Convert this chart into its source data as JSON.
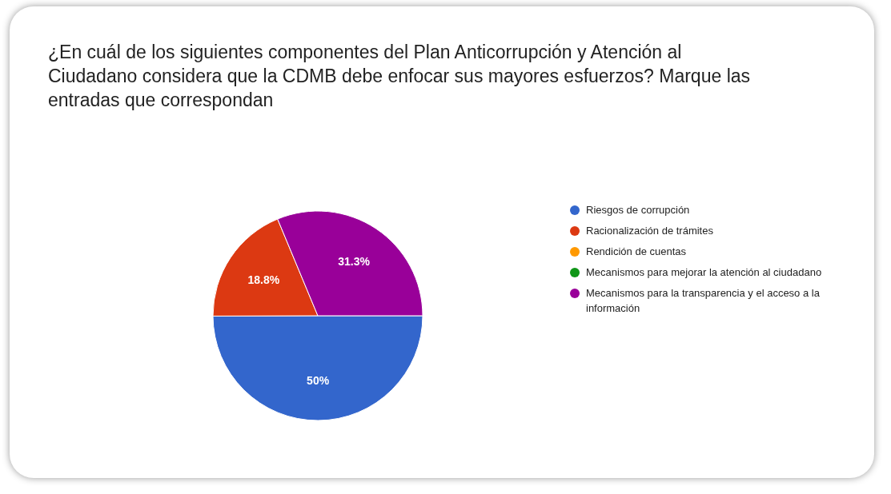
{
  "chart_data": {
    "type": "pie",
    "title": "¿En cuál de los siguientes componentes del Plan Anticorrupción y Atención al Ciudadano considera que la CDMB debe enfocar sus mayores esfuerzos? Marque las entradas que correspondan",
    "categories": [
      "Riesgos de corrupción",
      "Racionalización de trámites",
      "Rendición de cuentas",
      "Mecanismos para mejorar la atención al ciudadano",
      "Mecanismos para la transparencia y el acceso a la información"
    ],
    "values": [
      50,
      18.8,
      0,
      0,
      31.3
    ],
    "colors": [
      "#3366cc",
      "#dc3912",
      "#ff9900",
      "#109618",
      "#990099"
    ],
    "value_labels": [
      "50%",
      "18.8%",
      null,
      null,
      "31.3%"
    ],
    "legend": "right"
  }
}
